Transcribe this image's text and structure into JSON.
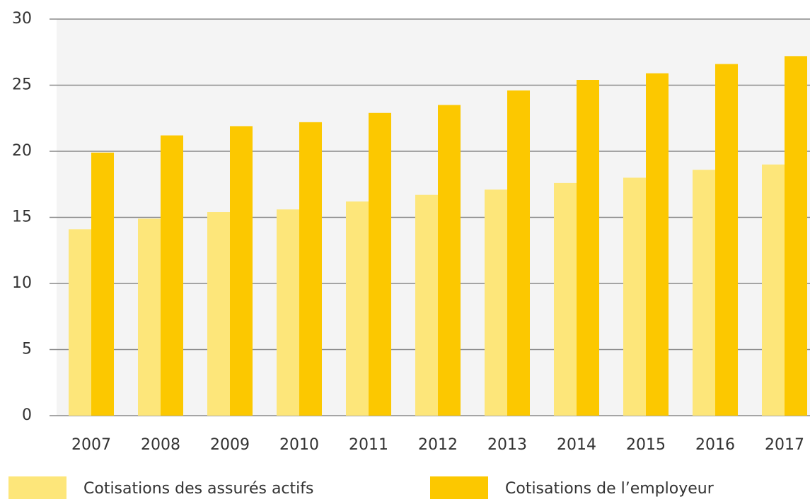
{
  "chart_data": {
    "type": "bar",
    "categories": [
      "2007",
      "2008",
      "2009",
      "2010",
      "2011",
      "2012",
      "2013",
      "2014",
      "2015",
      "2016",
      "2017"
    ],
    "series": [
      {
        "name": "Cotisations des assurés actifs",
        "color": "#fde67a",
        "values": [
          14.1,
          14.9,
          15.4,
          15.6,
          16.2,
          16.7,
          17.1,
          17.6,
          18.0,
          18.6,
          19.0
        ]
      },
      {
        "name": "Cotisations de l’employeur",
        "color": "#fcc800",
        "values": [
          19.9,
          21.2,
          21.9,
          22.2,
          22.9,
          23.5,
          24.6,
          25.4,
          25.9,
          26.6,
          27.2
        ]
      }
    ],
    "ylim": [
      0,
      30
    ],
    "yticks": [
      0,
      5,
      10,
      15,
      20,
      25,
      30
    ],
    "grid": true
  }
}
